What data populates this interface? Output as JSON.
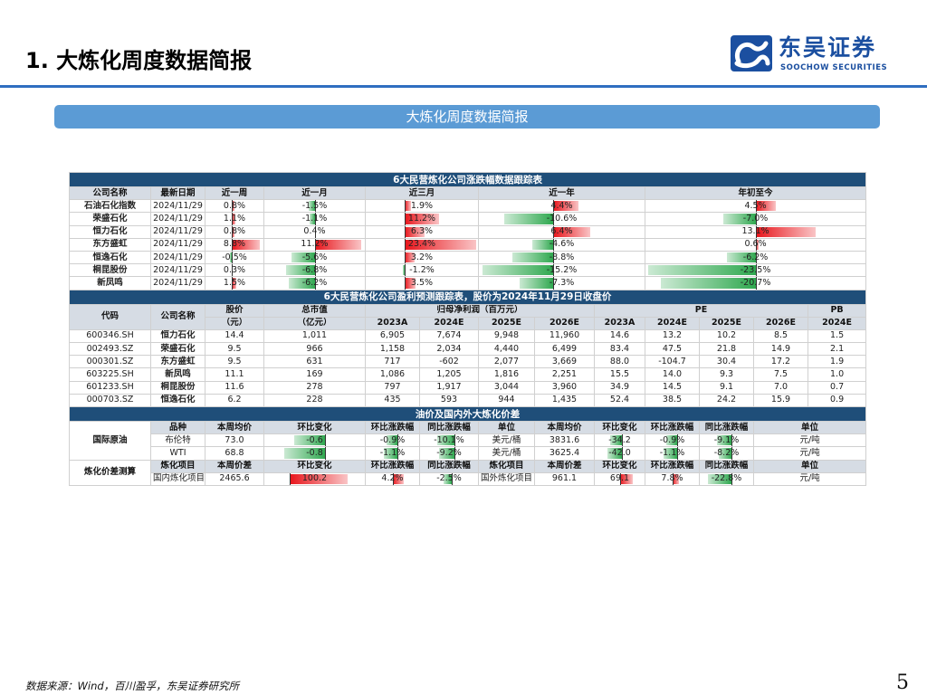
{
  "page": {
    "title": "1. 大炼化周度数据简报",
    "banner": "大炼化周度数据简报",
    "source": "数据来源：Wind，百川盈孚，东吴证券研究所",
    "page_number": "5",
    "logo_cn": "东吴证券",
    "logo_en": "SOOCHOW SECURITIES",
    "logo_icon": "soochow-logo-icon"
  },
  "colors": {
    "accent": "#2f6ec0",
    "banner": "#5b9bd5",
    "section": "#1f4e79",
    "header": "#d6dce4",
    "up": "#e8151b",
    "down": "#2fa84f"
  },
  "t1": {
    "title": "6大民营炼化公司涨跌幅数据跟踪表",
    "headers": [
      "公司名称",
      "最新日期",
      "近一周",
      "近一月",
      "近三月",
      "近一年",
      "年初至今"
    ],
    "rows": [
      {
        "name": "石油石化指数",
        "date": "2024/11/29",
        "w": "0.8%",
        "m": "-1.5%",
        "q": "1.9%",
        "y": "4.4%",
        "ytd": "4.5%"
      },
      {
        "name": "荣盛石化",
        "date": "2024/11/29",
        "w": "1.1%",
        "m": "-1.1%",
        "q": "11.2%",
        "y": "-10.6%",
        "ytd": "-7.0%"
      },
      {
        "name": "恒力石化",
        "date": "2024/11/29",
        "w": "0.8%",
        "m": "0.4%",
        "q": "6.3%",
        "y": "6.4%",
        "ytd": "13.1%"
      },
      {
        "name": "东方盛虹",
        "date": "2024/11/29",
        "w": "8.8%",
        "m": "11.2%",
        "q": "23.4%",
        "y": "-4.6%",
        "ytd": "0.6%"
      },
      {
        "name": "恒逸石化",
        "date": "2024/11/29",
        "w": "-0.5%",
        "m": "-5.6%",
        "q": "3.2%",
        "y": "-8.8%",
        "ytd": "-6.2%"
      },
      {
        "name": "桐昆股份",
        "date": "2024/11/29",
        "w": "0.3%",
        "m": "-6.8%",
        "q": "-1.2%",
        "y": "-15.2%",
        "ytd": "-23.5%"
      },
      {
        "name": "新凤鸣",
        "date": "2024/11/29",
        "w": "1.5%",
        "m": "-6.2%",
        "q": "3.5%",
        "y": "-7.3%",
        "ytd": "-20.7%"
      }
    ]
  },
  "t2": {
    "title": "6大民营炼化公司盈利预测跟踪表，股价为2024年11月29日收盘价",
    "h_code": "代码",
    "h_name": "公司名称",
    "h_price_1": "股价",
    "h_price_2": "（元）",
    "h_cap_1": "总市值",
    "h_cap_2": "（亿元）",
    "h_profit": "归母净利润（百万元）",
    "h_pe": "PE",
    "h_pb": "PB",
    "years": [
      "2023A",
      "2024E",
      "2025E",
      "2026E",
      "2023A",
      "2024E",
      "2025E",
      "2026E",
      "2024E"
    ],
    "rows": [
      {
        "code": "600346.SH",
        "name": "恒力石化",
        "price": "14.4",
        "cap": "1,011",
        "p": [
          "6,905",
          "7,674",
          "9,948",
          "11,960"
        ],
        "pe": [
          "14.6",
          "13.2",
          "10.2",
          "8.5"
        ],
        "pb": "1.5"
      },
      {
        "code": "002493.SZ",
        "name": "荣盛石化",
        "price": "9.5",
        "cap": "966",
        "p": [
          "1,158",
          "2,034",
          "4,440",
          "6,499"
        ],
        "pe": [
          "83.4",
          "47.5",
          "21.8",
          "14.9"
        ],
        "pb": "2.1"
      },
      {
        "code": "000301.SZ",
        "name": "东方盛虹",
        "price": "9.5",
        "cap": "631",
        "p": [
          "717",
          "-602",
          "2,077",
          "3,669"
        ],
        "pe": [
          "88.0",
          "-104.7",
          "30.4",
          "17.2"
        ],
        "pb": "1.9"
      },
      {
        "code": "603225.SH",
        "name": "新凤鸣",
        "price": "11.1",
        "cap": "169",
        "p": [
          "1,086",
          "1,205",
          "1,816",
          "2,251"
        ],
        "pe": [
          "15.5",
          "14.0",
          "9.3",
          "7.5"
        ],
        "pb": "1.0"
      },
      {
        "code": "601233.SH",
        "name": "桐昆股份",
        "price": "11.6",
        "cap": "278",
        "p": [
          "797",
          "1,917",
          "3,044",
          "3,960"
        ],
        "pe": [
          "34.9",
          "14.5",
          "9.1",
          "7.0"
        ],
        "pb": "0.7"
      },
      {
        "code": "000703.SZ",
        "name": "恒逸石化",
        "price": "6.2",
        "cap": "228",
        "p": [
          "435",
          "593",
          "944",
          "1,435"
        ],
        "pe": [
          "52.4",
          "38.5",
          "24.2",
          "15.9"
        ],
        "pb": "0.9"
      }
    ]
  },
  "t3": {
    "title": "油价及国内外大炼化价差",
    "oil_label": "国际原油",
    "oil_headers": [
      "品种",
      "本周均价",
      "环比变化",
      "环比涨跌幅",
      "同比涨跌幅",
      "单位",
      "本周均价",
      "环比变化",
      "环比涨跌幅",
      "同比涨跌幅",
      "单位"
    ],
    "oil_rows": [
      {
        "name": "布伦特",
        "avg": "73.0",
        "chg": "-0.6",
        "wow": "-0.9%",
        "yoy": "-10.1%",
        "unit": "美元/桶",
        "avg2": "3831.6",
        "chg2": "-34.2",
        "wow2": "-0.9%",
        "yoy2": "-9.1%",
        "unit2": "元/吨"
      },
      {
        "name": "WTI",
        "avg": "68.8",
        "chg": "-0.8",
        "wow": "-1.1%",
        "yoy": "-9.2%",
        "unit": "美元/桶",
        "avg2": "3625.4",
        "chg2": "-42.0",
        "wow2": "-1.1%",
        "yoy2": "-8.2%",
        "unit2": "元/吨"
      }
    ],
    "spread_label": "炼化价差测算",
    "spread_headers": [
      "炼化项目",
      "本周价差",
      "环比变化",
      "环比涨跌幅",
      "同比涨跌幅",
      "炼化项目",
      "本周价差",
      "环比变化",
      "环比涨跌幅",
      "同比涨跌幅",
      "单位"
    ],
    "spread_row": {
      "name": "国内炼化项目",
      "avg": "2465.6",
      "chg": "100.2",
      "wow": "4.2%",
      "yoy": "-2.5%",
      "name2": "国外炼化项目",
      "avg2": "961.1",
      "chg2": "69.1",
      "wow2": "7.8%",
      "yoy2": "-22.8%",
      "unit": "元/吨"
    }
  }
}
